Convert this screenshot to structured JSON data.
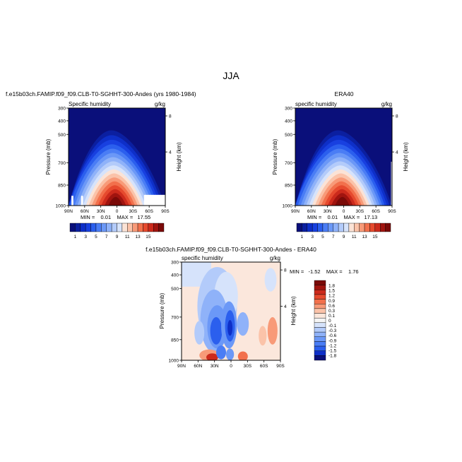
{
  "title": "JJA",
  "panels": {
    "top_left": {
      "title": "f.e15b03ch.FAMIP.f09_f09.CLB-T0-SGHHT-300-Andes (yrs 1980-1984)",
      "subtitle_left": "Specific humidity",
      "subtitle_right": "g/kg",
      "stats": "MIN =    0.01    MAX =   17.55"
    },
    "top_right": {
      "title": "ERA40",
      "subtitle_left": "specific humidity",
      "subtitle_right": "g/kg",
      "stats": "MIN =    0.01    MAX =   17.13"
    },
    "bottom": {
      "title": "f.e15b03ch.FAMIP.f09_f09.CLB-T0-SGHHT-300-Andes - ERA40",
      "subtitle_left": "specific humidity",
      "subtitle_right": "g/kg",
      "stats": "MIN =   -1.52    MAX =    1.76"
    }
  },
  "colors": {
    "main_scale": [
      "#0a0f7a",
      "#0b1fa0",
      "#0e2fc8",
      "#1840e0",
      "#2b5fee",
      "#4a7df5",
      "#6b98f7",
      "#8fb2f9",
      "#b3cbfa",
      "#d6e3fb",
      "#fbe3d6",
      "#fbc3a9",
      "#f89a78",
      "#f2704c",
      "#e64a2e",
      "#cc2a1c",
      "#a0140f",
      "#7a0a08"
    ],
    "diff_scale": [
      "#0a0f7a",
      "#0e2fc8",
      "#2b5fee",
      "#4a7df5",
      "#6b98f7",
      "#8fb2f9",
      "#b3cbfa",
      "#d6e3fb",
      "#f5f5f5",
      "#fbe7dc",
      "#fbc3a9",
      "#f89a78",
      "#f2704c",
      "#e64a2e",
      "#cc2a1c",
      "#a0140f",
      "#7a0a08"
    ]
  },
  "chart_data": [
    {
      "type": "heatmap",
      "title": "f.e15b03ch.FAMIP.f09_f09.CLB-T0-SGHHT-300-Andes (yrs 1980-1984)",
      "variable": "Specific humidity",
      "units": "g/kg",
      "xlabel": "",
      "ylabel": "Pressure (mb)",
      "y2label": "Height (km)",
      "x_ticks": [
        "90N",
        "60N",
        "30N",
        "0",
        "30S",
        "60S",
        "90S"
      ],
      "y_ticks": [
        300,
        400,
        500,
        700,
        850,
        1000
      ],
      "y2_ticks": [
        8,
        4
      ],
      "colorbar_labels": [
        "1",
        "3",
        "5",
        "7",
        "9",
        "11",
        "13",
        "15"
      ],
      "min": 0.01,
      "max": 17.55
    },
    {
      "type": "heatmap",
      "title": "ERA40",
      "variable": "specific humidity",
      "units": "g/kg",
      "xlabel": "",
      "ylabel": "Pressure (mb)",
      "y2label": "Height (km)",
      "x_ticks": [
        "90N",
        "60N",
        "30N",
        "0",
        "30S",
        "60S",
        "90S"
      ],
      "y_ticks": [
        300,
        400,
        500,
        700,
        850,
        1000
      ],
      "y2_ticks": [
        8,
        4
      ],
      "colorbar_labels": [
        "1",
        "3",
        "5",
        "7",
        "9",
        "11",
        "13",
        "15"
      ],
      "min": 0.01,
      "max": 17.13
    },
    {
      "type": "heatmap",
      "title": "f.e15b03ch.FAMIP.f09_f09.CLB-T0-SGHHT-300-Andes - ERA40",
      "variable": "specific humidity",
      "units": "g/kg",
      "xlabel": "",
      "ylabel": "Pressure (mb)",
      "y2label": "Height (km)",
      "x_ticks": [
        "90N",
        "60N",
        "30N",
        "0",
        "30S",
        "60S",
        "90S"
      ],
      "y_ticks": [
        300,
        400,
        500,
        700,
        850,
        1000
      ],
      "y2_ticks": [
        8,
        4
      ],
      "colorbar_labels": [
        "1.8",
        "1.5",
        "1.2",
        "0.9",
        "0.6",
        "0.3",
        "0.1",
        "0",
        "-0.1",
        "-0.3",
        "-0.6",
        "-0.9",
        "-1.2",
        "-1.5",
        "-1.8"
      ],
      "min": -1.52,
      "max": 1.76
    }
  ],
  "axes": {
    "pressure_label": "Pressure (mb)",
    "height_label": "Height (km)"
  }
}
